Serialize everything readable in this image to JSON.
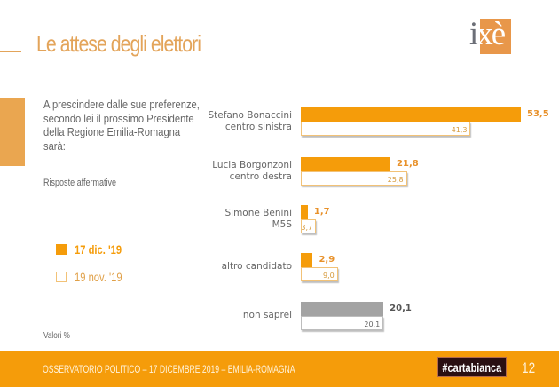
{
  "header": {
    "title": "Le attese degli elettori",
    "logo": {
      "i": "i",
      "xe": "xè"
    }
  },
  "question": {
    "text": "A prescindere dalle sue preferenze, secondo lei il prossimo Presidente della Regione Emilia-Romagna sarà:",
    "subnote": "Risposte affermative"
  },
  "legend": [
    {
      "label": "17 dic. '19",
      "style": "filled",
      "color": "#f59c0a"
    },
    {
      "label": "19 nov. '19",
      "style": "outline",
      "color": "#f2c277"
    }
  ],
  "units_note": "Valori %",
  "footer": {
    "text": "OSSERVATORIO POLITICO – 17 DICEMBRE 2019 – EMILIA-ROMAGNA",
    "badge": "#cartabianca",
    "page_number": "12"
  },
  "colors": {
    "accent": "#f59c0a",
    "title": "#e3a45a",
    "gray_bar": "#a3a3a3",
    "prev_value_text": "#d69a3c"
  },
  "chart_data": {
    "type": "bar",
    "orientation": "horizontal",
    "title": "A prescindere dalle sue preferenze, secondo lei il prossimo Presidente della Regione Emilia-Romagna sarà:",
    "xlabel": "Valori %",
    "ylabel": "",
    "xlim": [
      0,
      53.5
    ],
    "grid": false,
    "legend_position": "left",
    "categories": [
      {
        "name": "Stefano Bonaccini",
        "sub": "centro sinistra"
      },
      {
        "name": "Lucia Borgonzoni",
        "sub": "centro destra"
      },
      {
        "name": "Simone Benini",
        "sub": "M5S"
      },
      {
        "name": "altro candidato",
        "sub": ""
      },
      {
        "name": "non saprei",
        "sub": ""
      }
    ],
    "series": [
      {
        "name": "17 dic. '19",
        "values": [
          53.5,
          21.8,
          1.7,
          2.9,
          20.1
        ],
        "labels": [
          "53,5",
          "21,8",
          "1,7",
          "2,9",
          "20,1"
        ]
      },
      {
        "name": "19 nov. '19",
        "values": [
          41.3,
          25.8,
          3.7,
          9.0,
          20.1
        ],
        "labels": [
          "41,3",
          "25,8",
          "3,7",
          "9,0",
          "20,1"
        ]
      }
    ]
  }
}
